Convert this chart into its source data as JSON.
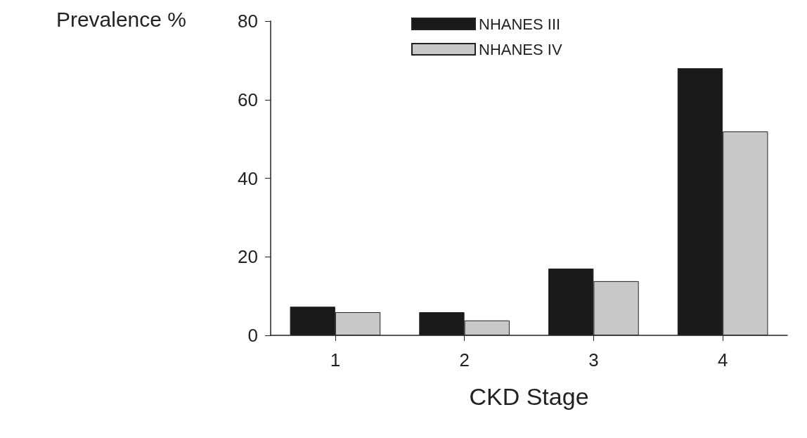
{
  "chart_data": {
    "type": "bar",
    "xlabel": "CKD Stage",
    "ylabel": "Prevalence %",
    "categories": [
      "1",
      "2",
      "3",
      "4"
    ],
    "series": [
      {
        "name": "NHANES III",
        "color": "#1a1a1a",
        "values": [
          7.3,
          5.9,
          17,
          68
        ]
      },
      {
        "name": "NHANES IV",
        "color": "#c8c8c8",
        "values": [
          5.9,
          3.8,
          13.8,
          51.9
        ]
      }
    ],
    "ylim": [
      0,
      80
    ],
    "yticks": [
      0,
      20,
      40,
      60,
      80
    ],
    "grid": false,
    "legend": "top"
  }
}
